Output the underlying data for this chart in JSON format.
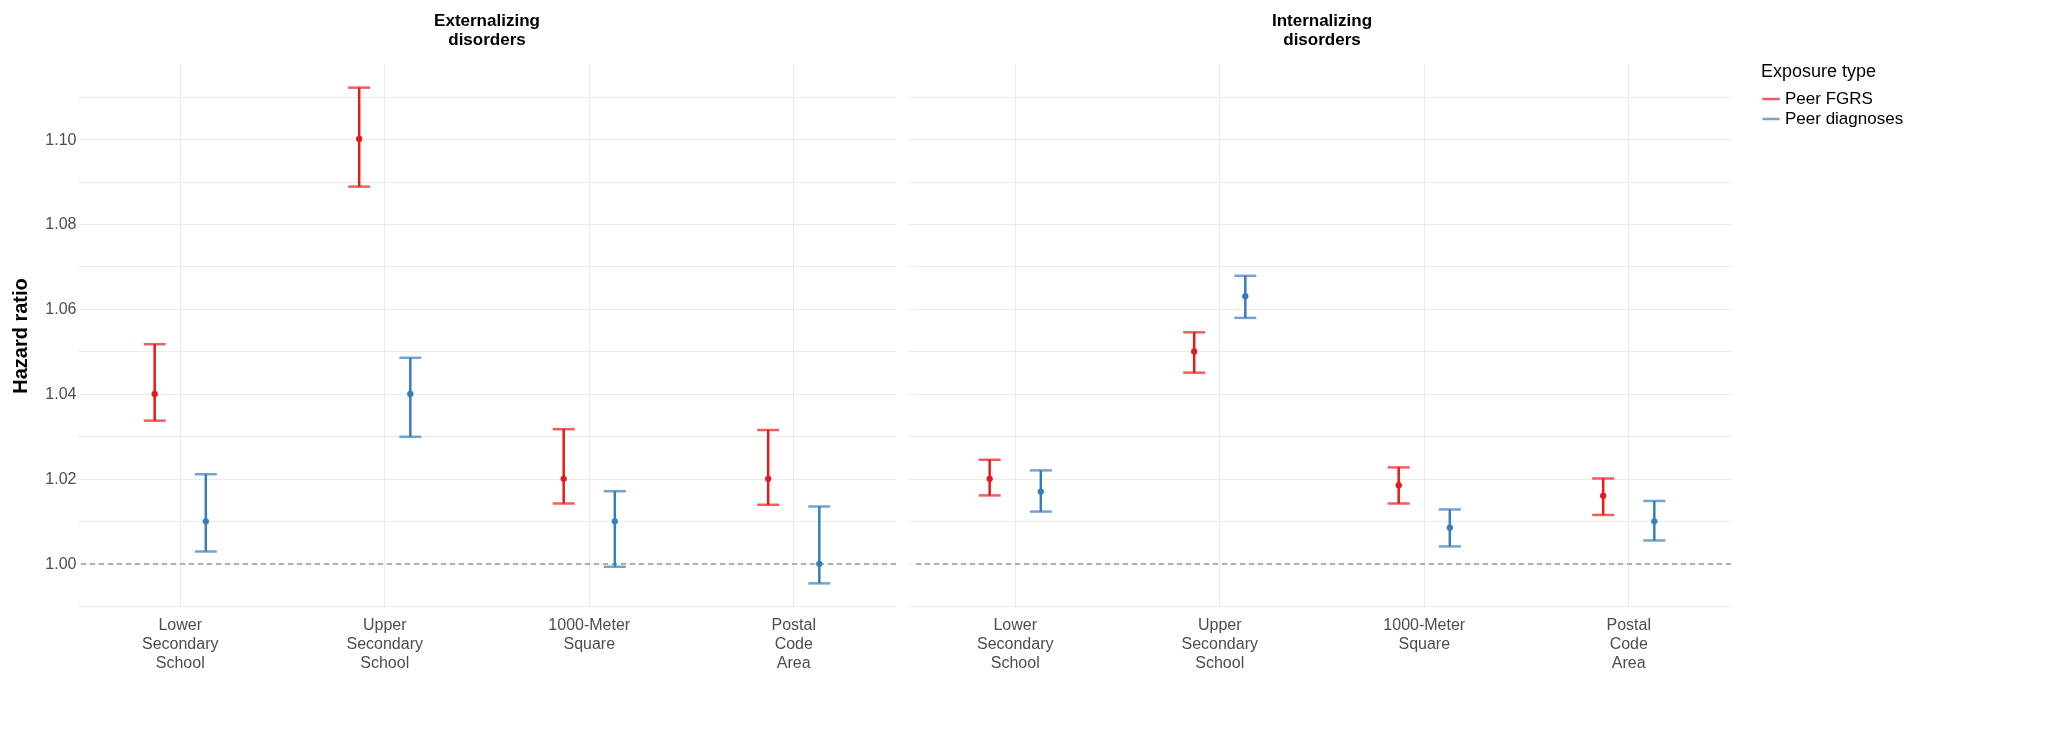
{
  "chart_data": [
    {
      "type": "scatter",
      "title": "Externalizing disorders",
      "ylabel": "Hazard ratio",
      "categories": [
        "Lower Secondary School",
        "Upper Secondary School",
        "1000-Meter Square",
        "Postal Code Area"
      ],
      "series": [
        {
          "color": "#e41a1c",
          "values": [
            1.04,
            1.1,
            1.02,
            1.02
          ],
          "errors": [
            [
              1.0337,
              1.0517
            ],
            [
              1.0888,
              1.1121
            ],
            [
              1.0142,
              1.0317
            ],
            [
              1.0139,
              1.0315
            ]
          ]
        },
        {
          "color": "#377eb8",
          "values": [
            1.01,
            1.04,
            1.01,
            1.0
          ],
          "errors": [
            [
              1.0029,
              1.0211
            ],
            [
              1.0299,
              1.0485
            ],
            [
              0.9993,
              1.0171
            ],
            [
              0.9954,
              1.0135
            ]
          ]
        }
      ],
      "ylim": [
        0.9896,
        1.1179
      ],
      "yticks": [
        {
          "value": 0.99,
          "label": null
        },
        {
          "value": 1.0,
          "label": "1.00"
        },
        {
          "value": 1.01,
          "label": null
        },
        {
          "value": 1.02,
          "label": "1.02"
        },
        {
          "value": 1.03,
          "label": null
        },
        {
          "value": 1.04,
          "label": "1.04"
        },
        {
          "value": 1.05,
          "label": null
        },
        {
          "value": 1.06,
          "label": "1.06"
        },
        {
          "value": 1.07,
          "label": null
        },
        {
          "value": 1.08,
          "label": "1.08"
        },
        {
          "value": 1.09,
          "label": null
        },
        {
          "value": 1.1,
          "label": "1.10"
        },
        {
          "value": 1.11,
          "label": null
        }
      ],
      "ref_lines": [
        {
          "axis": "y",
          "value": 1.0,
          "color": "#888888",
          "line_style": "dashed"
        }
      ],
      "grid": true,
      "marker": "circle"
    },
    {
      "type": "scatter",
      "title": "Internalizing disorders",
      "legend_title": "Exposure type",
      "categories": [
        "Lower Secondary School",
        "Upper Secondary School",
        "1000-Meter Square",
        "Postal Code Area"
      ],
      "series": [
        {
          "name": "Peer FGRS",
          "color": "#e41a1c",
          "values": [
            1.02,
            1.05,
            1.0185,
            1.016
          ],
          "errors": [
            [
              1.0161,
              1.0245
            ],
            [
              1.045,
              1.0545
            ],
            [
              1.0142,
              1.0227
            ],
            [
              1.0115,
              1.0201
            ]
          ]
        },
        {
          "name": "Peer diagnoses",
          "color": "#377eb8",
          "values": [
            1.017,
            1.063,
            1.0085,
            1.01
          ],
          "errors": [
            [
              1.0123,
              1.022
            ],
            [
              1.0579,
              1.0678
            ],
            [
              1.0041,
              1.0128
            ],
            [
              1.0055,
              1.0148
            ]
          ]
        }
      ],
      "ylim": [
        0.9896,
        1.1179
      ],
      "yticks": [
        {
          "value": 0.99,
          "label": null
        },
        {
          "value": 1.0,
          "label": null
        },
        {
          "value": 1.01,
          "label": null
        },
        {
          "value": 1.02,
          "label": null
        },
        {
          "value": 1.03,
          "label": null
        },
        {
          "value": 1.04,
          "label": null
        },
        {
          "value": 1.05,
          "label": null
        },
        {
          "value": 1.06,
          "label": null
        },
        {
          "value": 1.07,
          "label": null
        },
        {
          "value": 1.08,
          "label": null
        },
        {
          "value": 1.09,
          "label": null
        },
        {
          "value": 1.1,
          "label": null
        },
        {
          "value": 1.11,
          "label": null
        }
      ],
      "ref_lines": [
        {
          "axis": "y",
          "value": 1.0,
          "color": "#888888",
          "line_style": "dashed"
        }
      ],
      "grid": true,
      "marker": "circle",
      "legend": "right",
      "tick_labels": "x"
    }
  ]
}
